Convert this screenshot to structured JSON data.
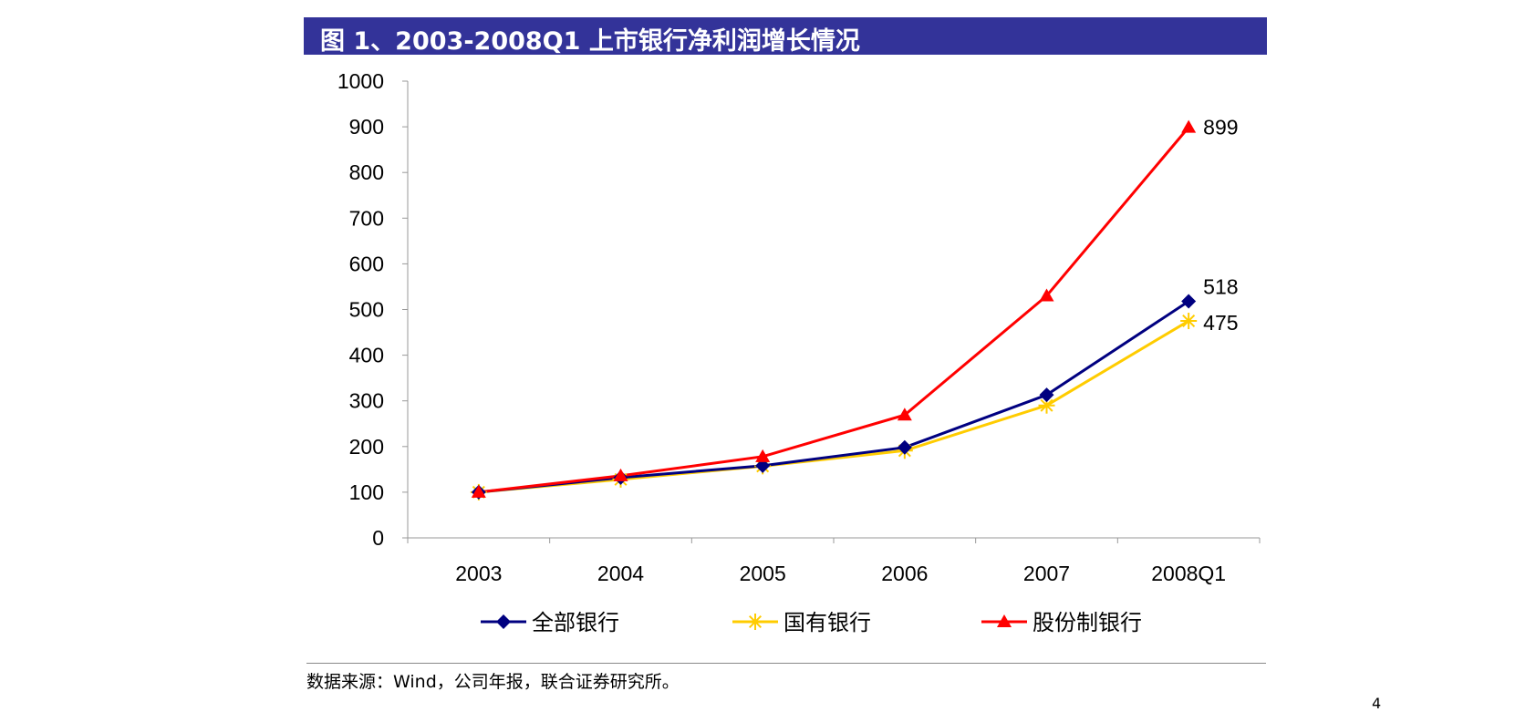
{
  "header": {
    "title": "图 1、2003-2008Q1 上市银行净利润增长情况",
    "bar_color": "#333399"
  },
  "chart_data": {
    "type": "line",
    "title": "图 1、2003-2008Q1 上市银行净利润增长情况",
    "xlabel": "",
    "ylabel": "",
    "categories": [
      "2003",
      "2004",
      "2005",
      "2006",
      "2007",
      "2008Q1"
    ],
    "ylim": [
      0,
      1000
    ],
    "yticks": [
      0,
      100,
      200,
      300,
      400,
      500,
      600,
      700,
      800,
      900,
      1000
    ],
    "grid": false,
    "legend_position": "bottom",
    "series": [
      {
        "name": "全部银行",
        "color": "#000080",
        "marker": "diamond",
        "values": [
          100,
          132,
          158,
          198,
          313,
          518
        ]
      },
      {
        "name": "国有银行",
        "color": "#FFCC00",
        "marker": "star",
        "values": [
          100,
          128,
          157,
          191,
          290,
          475
        ]
      },
      {
        "name": "股份制银行",
        "color": "#FF0000",
        "marker": "triangle",
        "values": [
          100,
          136,
          178,
          269,
          530,
          899
        ]
      }
    ],
    "end_labels": [
      {
        "series": 2,
        "text": "899"
      },
      {
        "series": 0,
        "text": "518"
      },
      {
        "series": 1,
        "text": "475"
      }
    ]
  },
  "footer": {
    "source": "数据来源：Wind，公司年报，联合证券研究所。",
    "page_mark": "4"
  }
}
